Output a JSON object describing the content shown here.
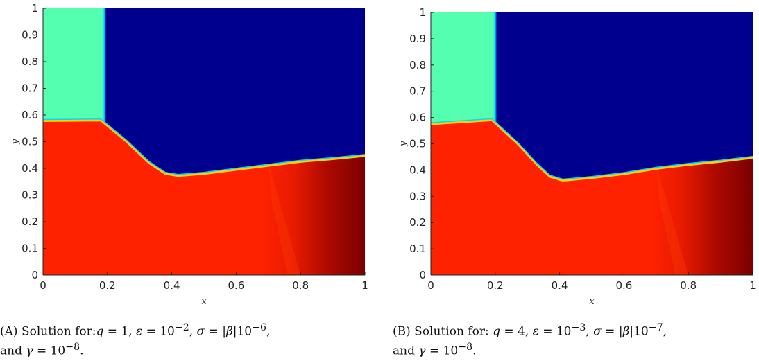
{
  "chart_data": [
    {
      "type": "heatmap",
      "panel_label": "(A)",
      "xlabel": "x",
      "ylabel": "y",
      "xlim": [
        0,
        1
      ],
      "ylim": [
        0,
        1
      ],
      "x_ticks": [
        "0",
        "0.2",
        "0.4",
        "0.6",
        "0.8",
        "1"
      ],
      "y_ticks": [
        "0",
        "0.1",
        "0.2",
        "0.3",
        "0.4",
        "0.5",
        "0.6",
        "0.7",
        "0.8",
        "0.9",
        "1"
      ],
      "colormap": "jet",
      "regions": {
        "upper_left": {
          "color": "#55ffb0",
          "x_range": [
            0,
            0.19
          ],
          "y_range": [
            0.58,
            1
          ]
        },
        "upper_right": {
          "color": "#00008f",
          "x_range": [
            0.19,
            1
          ],
          "y_range": [
            0.37,
            1
          ]
        },
        "lower": {
          "color": "#ff2200"
        }
      },
      "interface": {
        "x": [
          0,
          0.18,
          0.26,
          0.33,
          0.38,
          0.42,
          0.5,
          0.6,
          0.7,
          0.8,
          0.9,
          1.0
        ],
        "y": [
          0.578,
          0.58,
          0.5,
          0.42,
          0.38,
          0.372,
          0.38,
          0.395,
          0.41,
          0.425,
          0.435,
          0.447
        ]
      },
      "front_x": 0.19
    },
    {
      "type": "heatmap",
      "panel_label": "(B)",
      "xlabel": "x",
      "ylabel": "y",
      "xlim": [
        0,
        1
      ],
      "ylim": [
        0,
        1
      ],
      "x_ticks": [
        "0",
        "0.2",
        "0.4",
        "0.6",
        "0.8",
        "1"
      ],
      "y_ticks": [
        "0",
        "0.1",
        "0.2",
        "0.3",
        "0.4",
        "0.5",
        "0.6",
        "0.7",
        "0.8",
        "0.9",
        "1"
      ],
      "colormap": "jet",
      "regions": {
        "upper_left": {
          "color": "#55ffb0",
          "x_range": [
            0,
            0.2
          ],
          "y_range": [
            0.58,
            1
          ]
        },
        "upper_right": {
          "color": "#00008f",
          "x_range": [
            0.2,
            1
          ],
          "y_range": [
            0.36,
            1
          ]
        },
        "lower": {
          "color": "#ff2200"
        }
      },
      "interface": {
        "x": [
          0,
          0.19,
          0.27,
          0.33,
          0.37,
          0.41,
          0.5,
          0.6,
          0.7,
          0.8,
          0.9,
          1.0
        ],
        "y": [
          0.575,
          0.59,
          0.5,
          0.42,
          0.375,
          0.36,
          0.37,
          0.385,
          0.405,
          0.42,
          0.432,
          0.447
        ]
      },
      "front_x": 0.2
    }
  ],
  "captions": [
    {
      "label": "(A)",
      "text_parts": [
        "Solution for:",
        "q",
        " = 1, ",
        "ε",
        " = 10",
        "−2",
        ", ",
        "σ",
        " = |",
        "β",
        "|10",
        "−6",
        ",",
        "and ",
        "γ",
        " = 10",
        "−8",
        "."
      ]
    },
    {
      "label": "(B)",
      "text_parts": [
        "Solution for: ",
        "q",
        " = 4, ",
        "ε",
        " = 10",
        "−3",
        ", ",
        "σ",
        " = |",
        "β",
        "|10",
        "−7",
        ",",
        "and ",
        "γ",
        " = 10",
        "−8",
        "."
      ]
    }
  ]
}
